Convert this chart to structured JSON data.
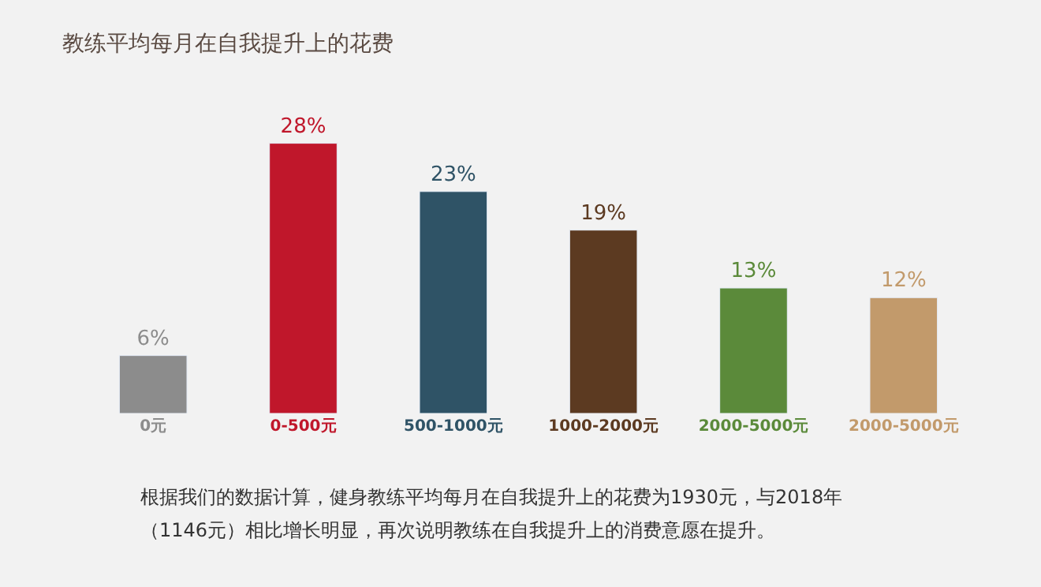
{
  "chart_data": {
    "type": "bar",
    "title": "教练平均每月在自我提升上的花费",
    "categories": [
      "0元",
      "0-500元",
      "500-1000元",
      "1000-2000元",
      "2000-5000元",
      "2000-5000元"
    ],
    "values": [
      6,
      28,
      23,
      19,
      13,
      12
    ],
    "value_labels": [
      "6%",
      "28%",
      "23%",
      "19%",
      "13%",
      "12%"
    ],
    "colors": [
      "#8c8c8c",
      "#c0172b",
      "#2f5366",
      "#5c3a21",
      "#5b8a3a",
      "#c29a6b"
    ],
    "annotations": [
      "根据我们的数据计算，健身教练平均每月在自我提升上的花费为1930元，与2018年",
      "（1146元）相比增长明显，再次说明教练在自我提升上的消费意愿在提升。"
    ]
  }
}
